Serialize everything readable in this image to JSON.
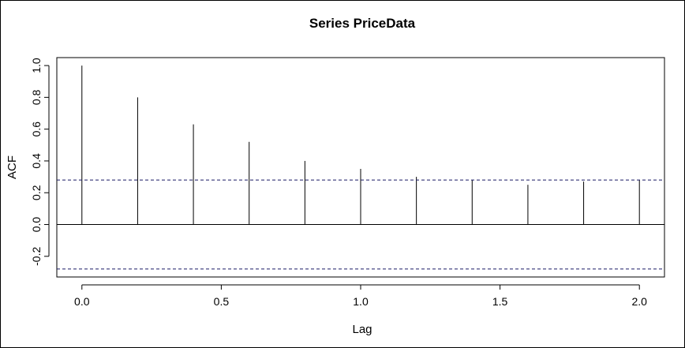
{
  "chart_data": {
    "type": "bar",
    "title": "Series  PriceData",
    "xlabel": "Lag",
    "ylabel": "ACF",
    "xlim": [
      -0.09,
      2.09
    ],
    "ylim": [
      -0.33,
      1.05
    ],
    "x_ticks": [
      "0.0",
      "0.5",
      "1.0",
      "1.5",
      "2.0"
    ],
    "x_tick_values": [
      0,
      0.5,
      1.0,
      1.5,
      2.0
    ],
    "y_ticks": [
      "-0.2",
      "0.0",
      "0.2",
      "0.4",
      "0.6",
      "0.8",
      "1.0"
    ],
    "y_tick_values": [
      -0.2,
      0,
      0.2,
      0.4,
      0.6,
      0.8,
      1.0
    ],
    "series": [
      {
        "x": [
          0.0,
          0.2,
          0.4,
          0.6,
          0.8,
          1.0,
          1.2,
          1.4,
          1.6,
          1.8,
          2.0
        ],
        "values": [
          1.0,
          0.8,
          0.63,
          0.52,
          0.4,
          0.35,
          0.3,
          0.28,
          0.25,
          0.27,
          0.28
        ]
      }
    ],
    "confidence_bound": 0.28,
    "grid": false,
    "colors": {
      "lines": "#000000",
      "confidence": "#1a1a66"
    }
  }
}
